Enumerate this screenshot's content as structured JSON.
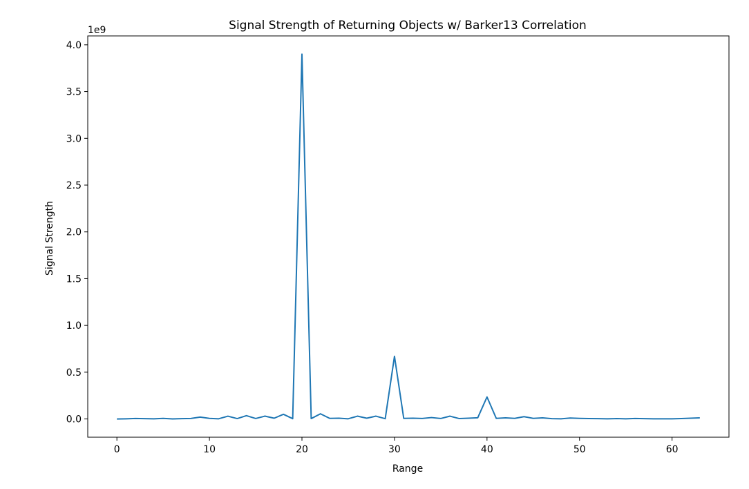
{
  "chart_data": {
    "type": "line",
    "title": "Signal Strength of Returning Objects w/ Barker13 Correlation",
    "xlabel": "Range",
    "ylabel": "Signal Strength",
    "y_multiplier_label": "1e9",
    "xlim": [
      -3.15,
      66.15
    ],
    "ylim": [
      -0.195,
      4.095
    ],
    "x_ticks": [
      0,
      10,
      20,
      30,
      40,
      50,
      60
    ],
    "x_tick_labels": [
      "0",
      "10",
      "20",
      "30",
      "40",
      "50",
      "60"
    ],
    "y_ticks": [
      0.0,
      0.5,
      1.0,
      1.5,
      2.0,
      2.5,
      3.0,
      3.5,
      4.0
    ],
    "y_tick_labels": [
      "0.0",
      "0.5",
      "1.0",
      "1.5",
      "2.0",
      "2.5",
      "3.0",
      "3.5",
      "4.0"
    ],
    "grid": false,
    "legend": false,
    "series": [
      {
        "color": "#1f77b4",
        "x": [
          0,
          1,
          2,
          3,
          4,
          5,
          6,
          7,
          8,
          9,
          10,
          11,
          12,
          13,
          14,
          15,
          16,
          17,
          18,
          19,
          20,
          21,
          22,
          23,
          24,
          25,
          26,
          27,
          28,
          29,
          30,
          31,
          32,
          33,
          34,
          35,
          36,
          37,
          38,
          39,
          40,
          41,
          42,
          43,
          44,
          45,
          46,
          47,
          48,
          49,
          50,
          51,
          52,
          53,
          54,
          55,
          56,
          57,
          58,
          59,
          60,
          61,
          62,
          63
        ],
        "y": [
          0.0,
          0.002,
          0.005,
          0.003,
          0.002,
          0.006,
          0.001,
          0.003,
          0.005,
          0.02,
          0.006,
          0.002,
          0.03,
          0.004,
          0.035,
          0.005,
          0.03,
          0.008,
          0.05,
          0.003,
          3.9,
          0.004,
          0.055,
          0.006,
          0.008,
          0.002,
          0.03,
          0.008,
          0.03,
          0.003,
          0.67,
          0.006,
          0.008,
          0.005,
          0.015,
          0.005,
          0.03,
          0.004,
          0.008,
          0.013,
          0.235,
          0.006,
          0.012,
          0.006,
          0.025,
          0.006,
          0.012,
          0.003,
          0.002,
          0.01,
          0.006,
          0.004,
          0.003,
          0.002,
          0.004,
          0.002,
          0.005,
          0.003,
          0.002,
          0.002,
          0.002,
          0.004,
          0.008,
          0.012
        ]
      }
    ]
  }
}
